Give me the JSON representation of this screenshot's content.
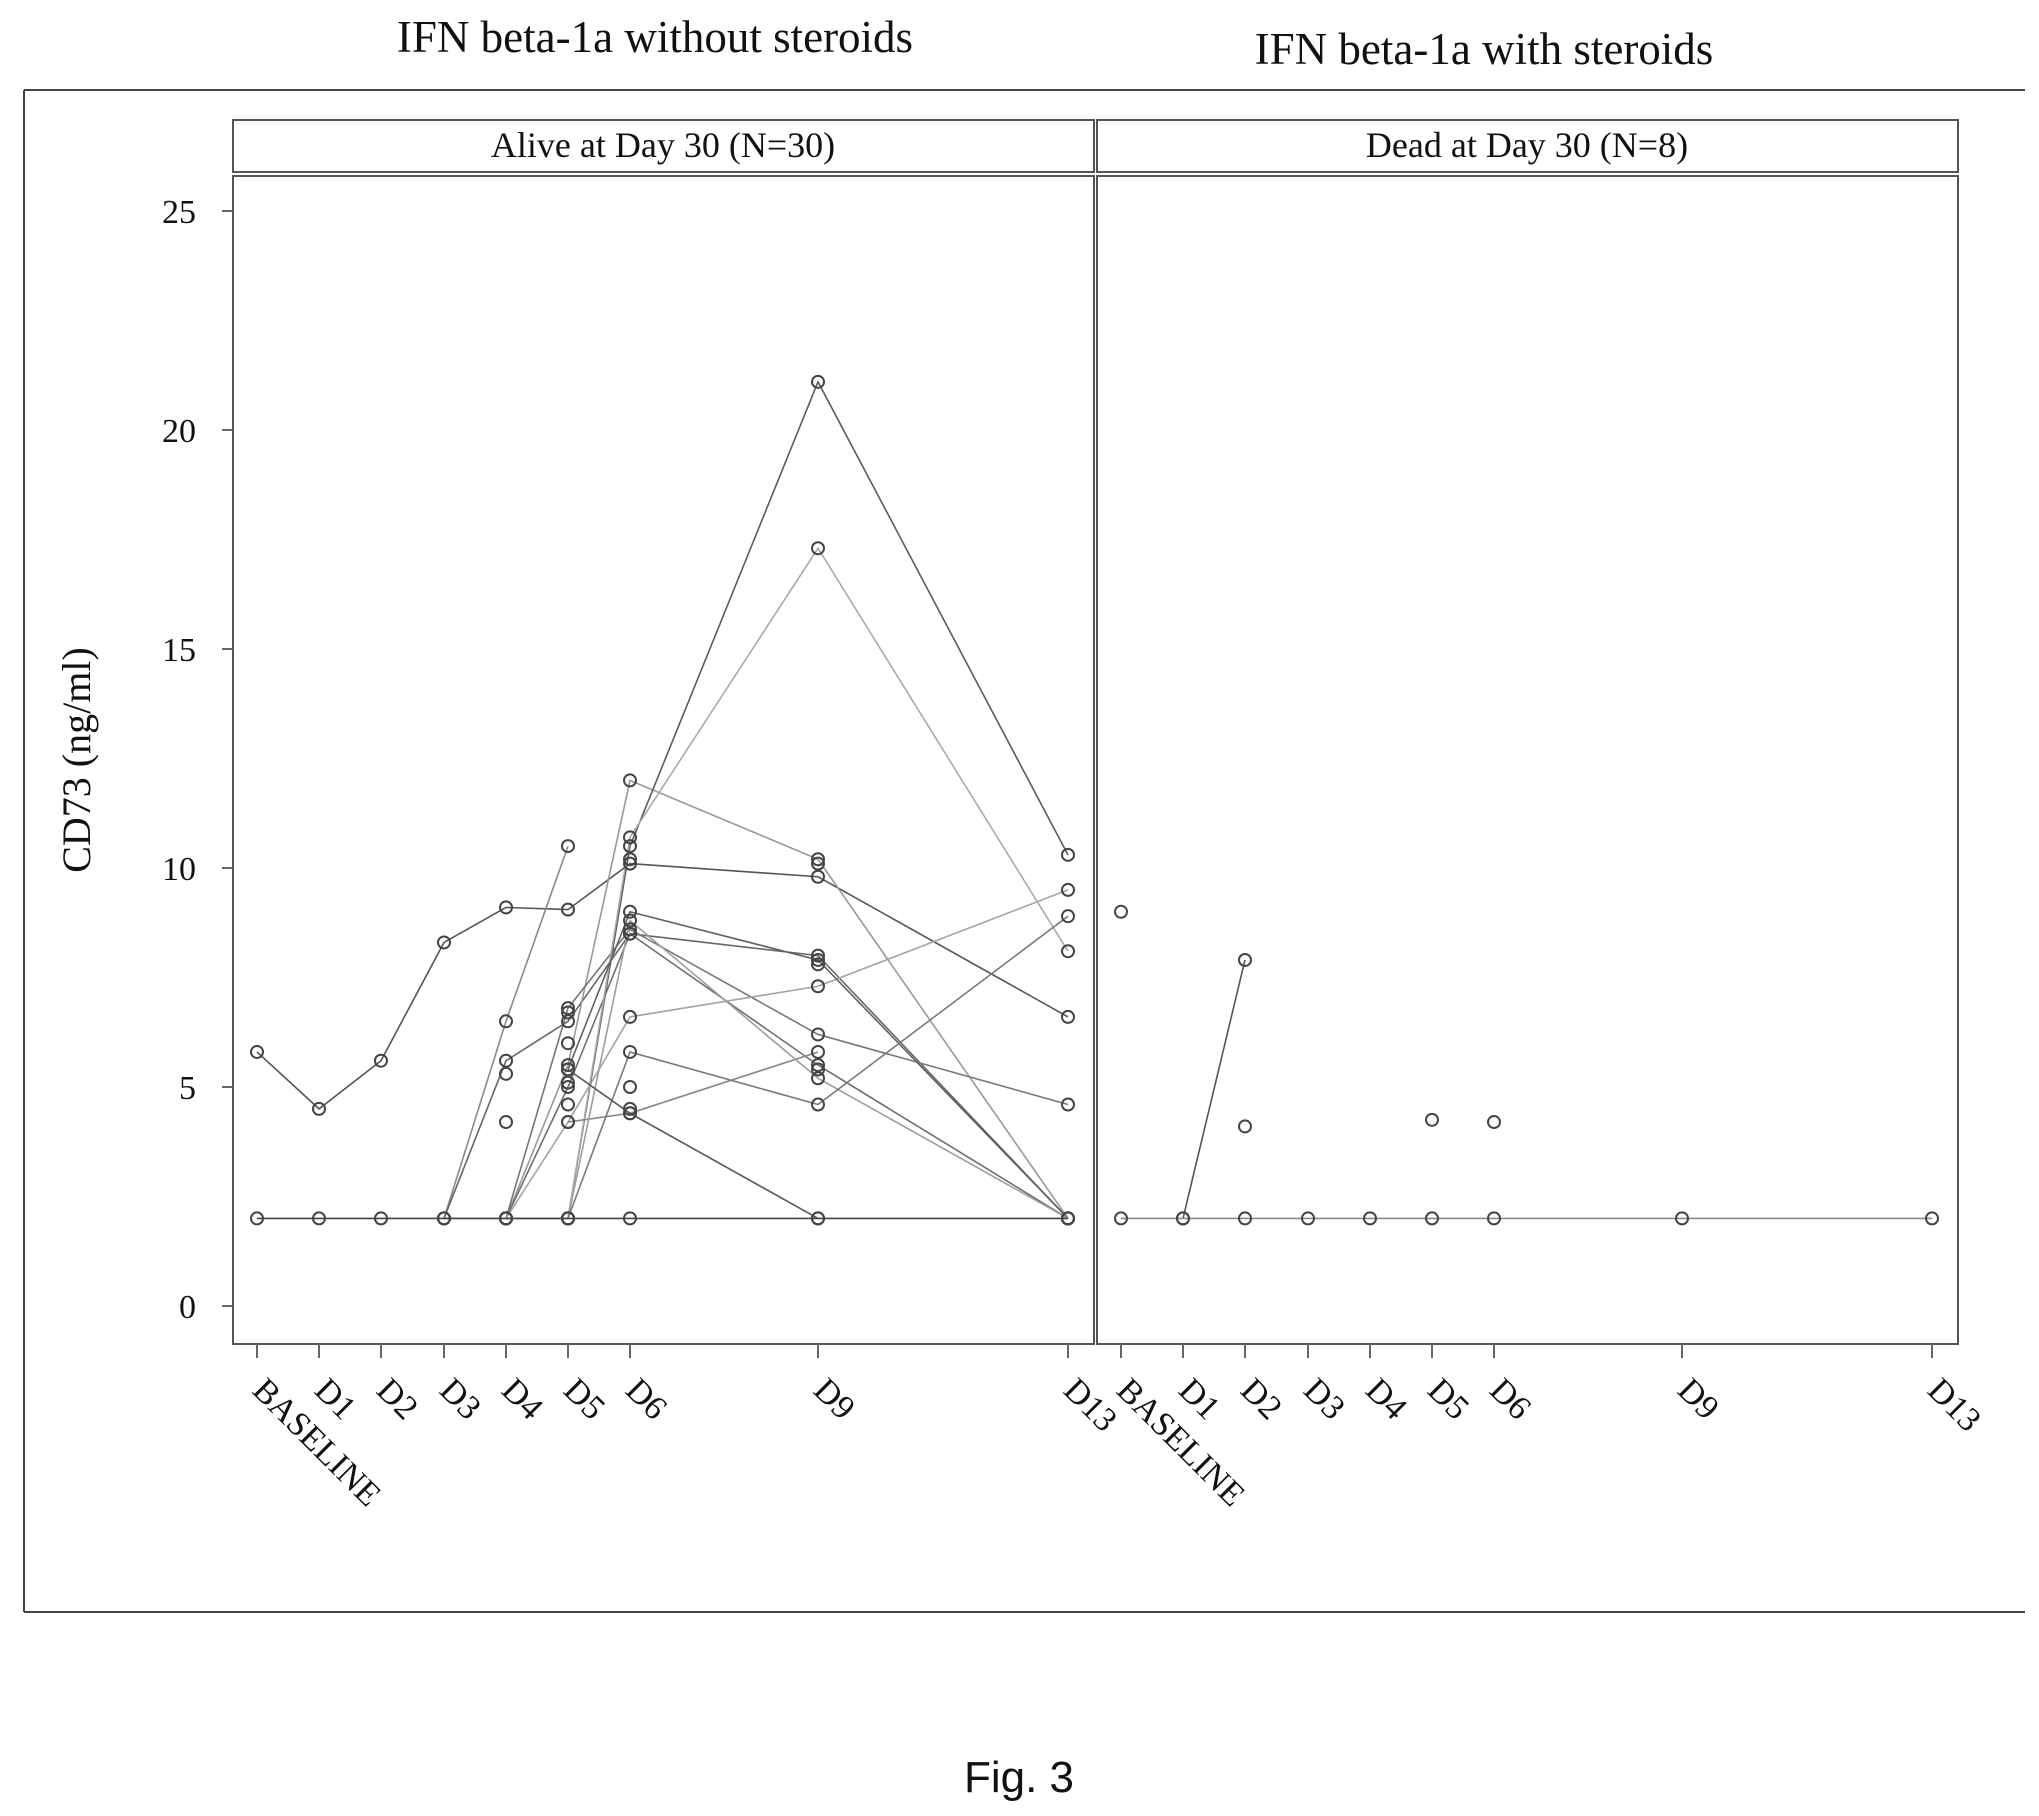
{
  "figure_label": "Fig. 3",
  "chart_data": {
    "type": "line",
    "group_titles": [
      "IFN beta-1a without steroids",
      "IFN beta-1a with steroids"
    ],
    "ylabel": "CD73 (ng/ml)",
    "xlabel": "",
    "ylim": [
      -0.8,
      25.8
    ],
    "yticks": [
      0,
      5,
      10,
      15,
      20,
      25
    ],
    "grid": false,
    "legend": "none",
    "panels": [
      {
        "title": "Alive at Day 30 (N=30)",
        "categories": [
          "BASELINE",
          "D1",
          "D2",
          "D3",
          "D4",
          "D5",
          "D6",
          "D9",
          "D13"
        ],
        "series": [
          {
            "values": [
              5.8,
              4.5,
              5.6,
              8.3,
              9.1,
              9.05,
              10.1,
              9.8,
              6.6
            ]
          },
          {
            "values": [
              null,
              null,
              null,
              2,
              6.5,
              10.5,
              null,
              null,
              null
            ]
          },
          {
            "values": [
              null,
              null,
              null,
              2,
              5.6,
              6.5,
              8.5,
              8.0,
              2
            ]
          },
          {
            "values": [
              null,
              null,
              null,
              2,
              2,
              5.5,
              12.0,
              10.2,
              2
            ]
          },
          {
            "values": [
              null,
              null,
              null,
              null,
              2,
              6.8,
              8.6,
              6.2,
              4.6
            ]
          },
          {
            "values": [
              null,
              null,
              null,
              null,
              2,
              5.0,
              8.5,
              5.5,
              2
            ]
          },
          {
            "values": [
              null,
              null,
              null,
              null,
              2,
              4.2,
              6.6,
              7.3,
              9.5
            ]
          },
          {
            "values": [
              null,
              null,
              null,
              null,
              2,
              2,
              10.5,
              21.1,
              10.3
            ]
          },
          {
            "values": [
              null,
              null,
              null,
              null,
              2,
              2,
              10.7,
              17.3,
              8.1
            ]
          },
          {
            "values": [
              null,
              null,
              null,
              null,
              null,
              4.2,
              4.4,
              5.8,
              null
            ]
          },
          {
            "values": [
              null,
              null,
              null,
              null,
              null,
              5.4,
              9.0,
              7.9,
              2
            ]
          },
          {
            "values": [
              null,
              null,
              null,
              null,
              null,
              2,
              8.8,
              5.2,
              2
            ]
          },
          {
            "values": [
              null,
              null,
              null,
              null,
              null,
              2,
              5.8,
              4.6,
              8.9
            ]
          },
          {
            "values": [
              null,
              null,
              null,
              null,
              null,
              5.4,
              4.4,
              2,
              null
            ]
          },
          {
            "values": [
              2,
              2,
              2,
              2,
              2,
              2,
              2,
              2,
              2
            ]
          }
        ],
        "unconnected_points": [
          {
            "x": "D4",
            "y": 4.2
          },
          {
            "x": "D4",
            "y": 5.3
          },
          {
            "x": "D5",
            "y": 6.0
          },
          {
            "x": "D5",
            "y": 6.7
          },
          {
            "x": "D5",
            "y": 5.1
          },
          {
            "x": "D5",
            "y": 4.6
          },
          {
            "x": "D6",
            "y": 10.2
          },
          {
            "x": "D6",
            "y": 5.0
          },
          {
            "x": "D6",
            "y": 4.5
          },
          {
            "x": "D9",
            "y": 10.1
          },
          {
            "x": "D9",
            "y": 5.4
          },
          {
            "x": "D9",
            "y": 7.8
          }
        ]
      },
      {
        "title": "Dead at Day 30 (N=8)",
        "categories": [
          "BASELINE",
          "D1",
          "D2",
          "D3",
          "D4",
          "D5",
          "D6",
          "D9",
          "D13"
        ],
        "series": [
          {
            "values": [
              null,
              2,
              7.9,
              null,
              null,
              null,
              null,
              null,
              null
            ]
          },
          {
            "values": [
              2,
              2,
              2,
              2,
              2,
              2,
              2,
              2,
              2
            ]
          }
        ],
        "unconnected_points": [
          {
            "x": "BASELINE",
            "y": 9.0
          },
          {
            "x": "D2",
            "y": 4.1
          },
          {
            "x": "D5",
            "y": 4.25
          },
          {
            "x": "D6",
            "y": 4.2
          }
        ]
      }
    ]
  }
}
